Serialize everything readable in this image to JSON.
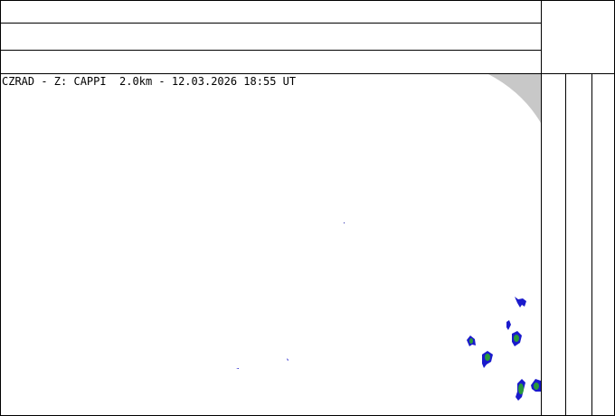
{
  "map": {
    "caption": "CZRAD - Z: CAPPI  2.0km - 12.03.2026 18:55 UT"
  }
}
